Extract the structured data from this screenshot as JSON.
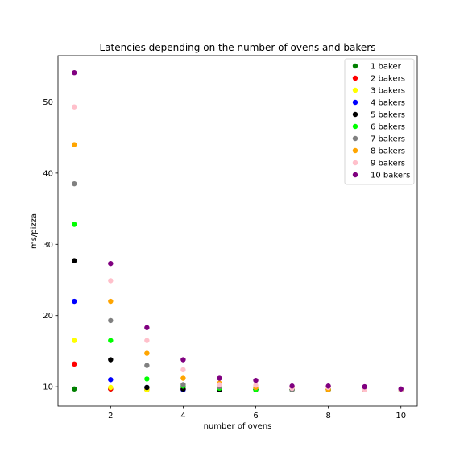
{
  "chart_data": {
    "type": "scatter",
    "title": "Latencies depending on the number of ovens and bakers",
    "xlabel": "number of ovens",
    "ylabel": "ms/pizza",
    "xlim": [
      0.55,
      10.45
    ],
    "ylim": [
      7.3,
      56.5
    ],
    "xticks": [
      2,
      4,
      6,
      8,
      10
    ],
    "yticks": [
      10,
      20,
      30,
      40,
      50
    ],
    "grid": false,
    "legend_position": "top-right",
    "series": [
      {
        "name": "1 baker",
        "color": "#008000",
        "x": [
          1,
          2,
          3,
          4,
          5,
          6,
          7,
          8,
          9,
          10
        ],
        "y": [
          9.7,
          9.7,
          9.6,
          9.6,
          9.6,
          9.6,
          9.6,
          9.6,
          9.6,
          9.6
        ]
      },
      {
        "name": "2 bakers",
        "color": "#ff0000",
        "x": [
          1,
          2,
          3,
          4,
          5,
          6,
          7,
          8,
          9,
          10
        ],
        "y": [
          13.2,
          9.7,
          9.6,
          9.6,
          9.6,
          9.6,
          9.6,
          9.6,
          9.6,
          9.6
        ]
      },
      {
        "name": "3 bakers",
        "color": "#ffff00",
        "x": [
          1,
          2,
          3,
          4,
          5,
          6,
          7,
          8,
          9,
          10
        ],
        "y": [
          16.5,
          9.9,
          9.6,
          9.6,
          9.6,
          9.6,
          9.6,
          9.6,
          9.6,
          9.6
        ]
      },
      {
        "name": "4 bakers",
        "color": "#0000ff",
        "x": [
          1,
          2,
          3,
          4,
          5,
          6,
          7,
          8,
          9,
          10
        ],
        "y": [
          22.0,
          11.0,
          9.9,
          9.6,
          9.6,
          9.6,
          9.6,
          9.6,
          9.6,
          9.6
        ]
      },
      {
        "name": "5 bakers",
        "color": "#000000",
        "x": [
          1,
          2,
          3,
          4,
          5,
          6,
          7,
          8,
          9,
          10
        ],
        "y": [
          27.7,
          13.8,
          9.9,
          9.7,
          9.6,
          9.6,
          9.6,
          9.6,
          9.6,
          9.6
        ]
      },
      {
        "name": "6 bakers",
        "color": "#00ff00",
        "x": [
          1,
          2,
          3,
          4,
          5,
          6,
          7,
          8,
          9,
          10
        ],
        "y": [
          32.8,
          16.5,
          11.1,
          10.1,
          9.8,
          9.6,
          9.6,
          9.6,
          9.6,
          9.6
        ]
      },
      {
        "name": "7 bakers",
        "color": "#808080",
        "x": [
          1,
          2,
          3,
          4,
          5,
          6,
          7,
          8,
          9,
          10
        ],
        "y": [
          38.5,
          19.3,
          13.0,
          10.3,
          10.0,
          9.9,
          9.6,
          9.6,
          9.6,
          9.6
        ]
      },
      {
        "name": "8 bakers",
        "color": "#ffa500",
        "x": [
          1,
          2,
          3,
          4,
          5,
          6,
          7,
          8,
          9,
          10
        ],
        "y": [
          44.0,
          22.0,
          14.7,
          11.2,
          10.5,
          9.9,
          9.9,
          9.6,
          9.6,
          9.6
        ]
      },
      {
        "name": "9 bakers",
        "color": "#ffc0cb",
        "x": [
          1,
          2,
          3,
          4,
          5,
          6,
          7,
          8,
          9,
          10
        ],
        "y": [
          49.3,
          24.9,
          16.5,
          12.4,
          10.3,
          10.2,
          9.8,
          9.9,
          9.6,
          9.6
        ]
      },
      {
        "name": "10 bakers",
        "color": "#800080",
        "x": [
          1,
          2,
          3,
          4,
          5,
          6,
          7,
          8,
          9,
          10
        ],
        "y": [
          54.1,
          27.3,
          18.3,
          13.8,
          11.2,
          10.9,
          10.1,
          10.1,
          10.0,
          9.7
        ]
      }
    ]
  }
}
